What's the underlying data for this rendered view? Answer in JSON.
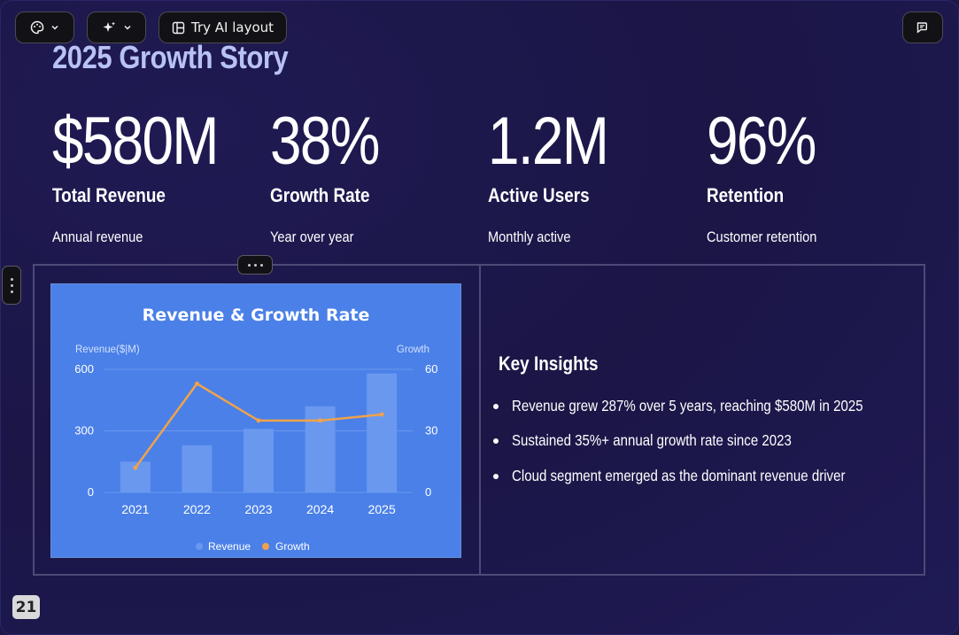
{
  "toolbar": {
    "ai_layout_label": "Try AI layout"
  },
  "slide": {
    "title": "2025 Growth Story",
    "stats": [
      {
        "value": "$580M",
        "label": "Total Revenue",
        "sub": "Annual revenue"
      },
      {
        "value": "38%",
        "label": "Growth Rate",
        "sub": "Year over year"
      },
      {
        "value": "1.2M",
        "label": "Active Users",
        "sub": "Monthly active"
      },
      {
        "value": "96%",
        "label": "Retention",
        "sub": "Customer retention"
      }
    ],
    "insights": {
      "title": "Key Insights",
      "items": [
        "Revenue grew 287% over 5 years, reaching $580M in 2025",
        "Sustained 35%+ annual growth rate since 2023",
        "Cloud segment emerged as the dominant revenue driver"
      ]
    },
    "page_number": "21"
  },
  "colors": {
    "background": "#1c1848",
    "chart_bg": "#4a80e8",
    "bar": "#6a98ef",
    "line": "#f0a24a",
    "title": "#b8c2f6"
  },
  "chart_data": {
    "type": "bar",
    "title": "Revenue & Growth Rate",
    "categories": [
      "2021",
      "2022",
      "2023",
      "2024",
      "2025"
    ],
    "series": [
      {
        "name": "Revenue",
        "type": "bar",
        "axis": "left",
        "values": [
          150,
          230,
          310,
          420,
          580
        ]
      },
      {
        "name": "Growth",
        "type": "line",
        "axis": "right",
        "values": [
          12,
          53,
          35,
          35,
          38
        ]
      }
    ],
    "ylabel": "Revenue($|M)",
    "y2label": "Growth",
    "ylim": [
      0,
      600
    ],
    "y2lim": [
      0,
      60
    ],
    "yticks": [
      0,
      300,
      600
    ],
    "y2ticks": [
      0,
      30,
      60
    ],
    "grid": true,
    "legend": "bottom-center"
  }
}
